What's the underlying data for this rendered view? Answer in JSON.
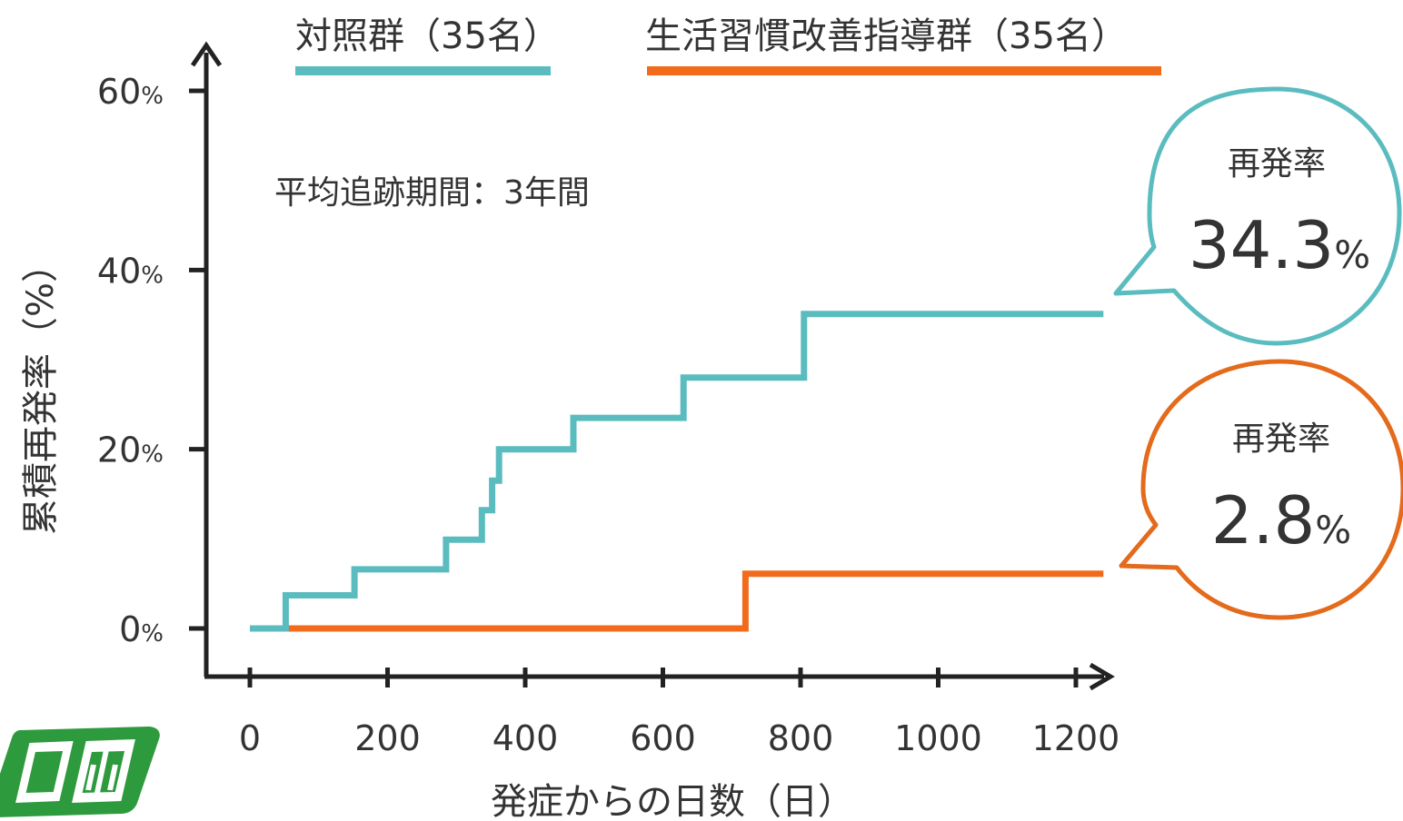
{
  "chart_data": {
    "type": "line",
    "step": true,
    "xlabel": "発症からの日数（日）",
    "ylabel": "累積再発率（%）",
    "xlim": [
      0,
      1250
    ],
    "ylim": [
      0,
      60
    ],
    "x_ticks": [
      "0",
      "200",
      "400",
      "600",
      "800",
      "1000",
      "1200"
    ],
    "y_ticks": [
      {
        "num": "60",
        "unit": "%"
      },
      {
        "num": "40",
        "unit": "%"
      },
      {
        "num": "20",
        "unit": "%"
      },
      {
        "num": "0",
        "unit": "%"
      }
    ],
    "grid": false,
    "legend_position": "top",
    "annotation": "平均追跡期間：3年間",
    "series": [
      {
        "name": "対照群（35名）",
        "color": "#5bbcbf",
        "points": [
          [
            0,
            0
          ],
          [
            52,
            0
          ],
          [
            52,
            3.7
          ],
          [
            152,
            3.7
          ],
          [
            152,
            6.6
          ],
          [
            285,
            6.6
          ],
          [
            285,
            9.9
          ],
          [
            337,
            9.9
          ],
          [
            337,
            13.2
          ],
          [
            352,
            13.2
          ],
          [
            352,
            16.5
          ],
          [
            362,
            16.5
          ],
          [
            362,
            20.0
          ],
          [
            470,
            20.0
          ],
          [
            470,
            23.5
          ],
          [
            630,
            23.5
          ],
          [
            630,
            28.0
          ],
          [
            805,
            28.0
          ],
          [
            805,
            35.1
          ],
          [
            1240,
            35.1
          ]
        ]
      },
      {
        "name": "生活習慣改善指導群（35名）",
        "color": "#f26b1d",
        "points": [
          [
            0,
            0
          ],
          [
            720,
            0
          ],
          [
            720,
            6.1
          ],
          [
            1240,
            6.1
          ]
        ]
      }
    ]
  },
  "bubbles": [
    {
      "title": "再発率",
      "value": "34.3",
      "unit": "%",
      "color": "#5bbcbf"
    },
    {
      "title": "再発率",
      "value": "2.8",
      "unit": "%",
      "color": "#e46a1c"
    }
  ],
  "logo": {
    "color": "#2e9a3e"
  }
}
